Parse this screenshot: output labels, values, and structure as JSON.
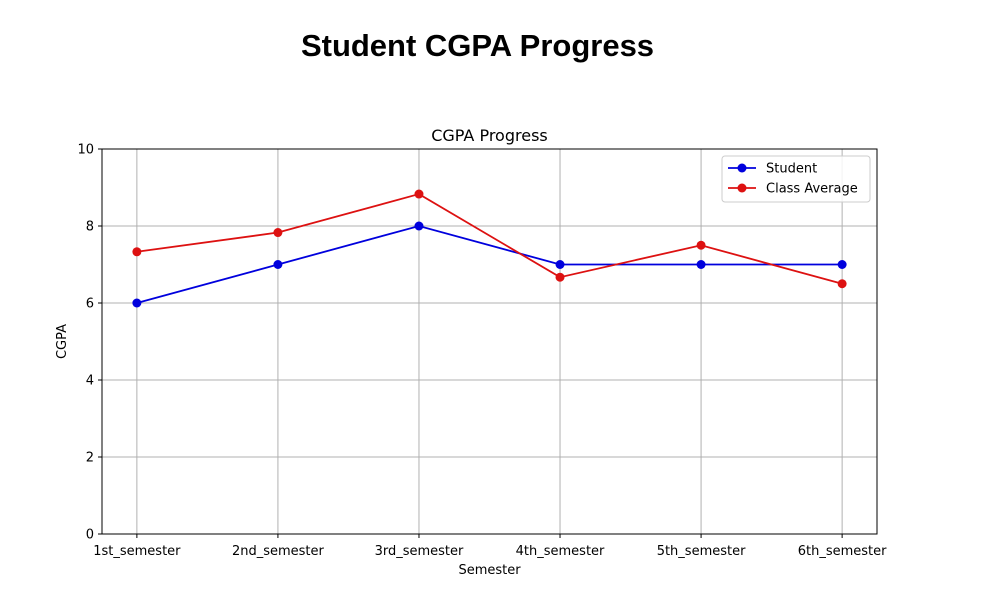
{
  "page": {
    "title": "Student CGPA Progress"
  },
  "chart_data": {
    "type": "line",
    "title": "CGPA Progress",
    "xlabel": "Semester",
    "ylabel": "CGPA",
    "categories": [
      "1st_semester",
      "2nd_semester",
      "3rd_semester",
      "4th_semester",
      "5th_semester",
      "6th_semester"
    ],
    "ylim": [
      0,
      10
    ],
    "yticks": [
      0,
      2,
      4,
      6,
      8,
      10
    ],
    "grid": true,
    "legend_position": "top-right",
    "series": [
      {
        "name": "Student",
        "color": "#0000dd",
        "marker": "circle",
        "values": [
          6,
          7,
          8,
          7,
          7,
          7
        ]
      },
      {
        "name": "Class Average",
        "color": "#dd1111",
        "marker": "circle",
        "values": [
          7.33,
          7.83,
          8.83,
          6.67,
          7.5,
          6.5
        ]
      }
    ]
  }
}
